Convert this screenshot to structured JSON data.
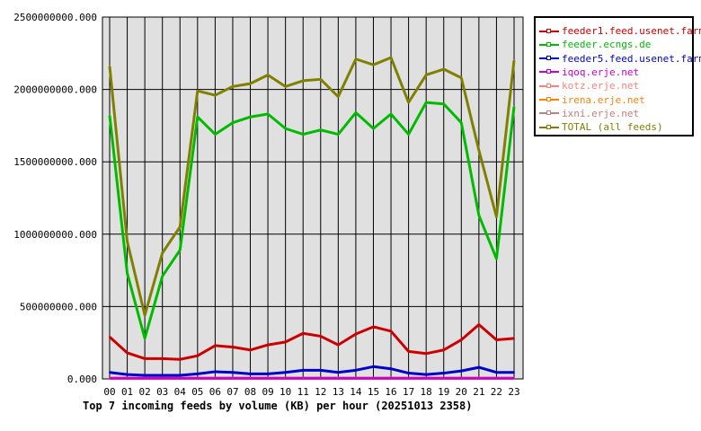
{
  "chart_data": {
    "type": "line",
    "title": "Top 7 incoming feeds by volume (KB) per hour (20251013 2358)",
    "xlabel": "",
    "ylabel": "",
    "categories": [
      "00",
      "01",
      "02",
      "03",
      "04",
      "05",
      "06",
      "07",
      "08",
      "09",
      "10",
      "11",
      "12",
      "13",
      "14",
      "15",
      "16",
      "17",
      "18",
      "19",
      "20",
      "21",
      "22",
      "23"
    ],
    "ylim": [
      0,
      2500000000
    ],
    "yticks": [
      "0.000",
      "500000000.000",
      "1000000000.000",
      "1500000000.000",
      "2000000000.000",
      "2500000000.000"
    ],
    "grid": true,
    "legend": "right",
    "series": [
      {
        "name": "feeder1.feed.usenet.farm",
        "color": "#cc0000",
        "values": [
          290000000.0,
          180000000.0,
          140000000.0,
          140000000.0,
          135000000.0,
          160000000.0,
          230000000.0,
          220000000.0,
          200000000.0,
          235000000.0,
          255000000.0,
          315000000.0,
          295000000.0,
          235000000.0,
          310000000.0,
          360000000.0,
          330000000.0,
          190000000.0,
          175000000.0,
          200000000.0,
          270000000.0,
          375000000.0,
          270000000.0,
          280000000.0
        ]
      },
      {
        "name": "feeder.ecngs.de",
        "color": "#00bb00",
        "values": [
          1820000000.0,
          730000000.0,
          280000000.0,
          710000000.0,
          890000000.0,
          1810000000.0,
          1690000000.0,
          1770000000.0,
          1810000000.0,
          1830000000.0,
          1730000000.0,
          1690000000.0,
          1720000000.0,
          1690000000.0,
          1840000000.0,
          1730000000.0,
          1830000000.0,
          1690000000.0,
          1910000000.0,
          1900000000.0,
          1770000000.0,
          1130000000.0,
          830000000.0,
          1880000000.0
        ]
      },
      {
        "name": "feeder5.feed.usenet.farm",
        "color": "#0000cc",
        "values": [
          45000000.0,
          30000000.0,
          25000000.0,
          25000000.0,
          25000000.0,
          35000000.0,
          50000000.0,
          45000000.0,
          35000000.0,
          35000000.0,
          45000000.0,
          60000000.0,
          60000000.0,
          45000000.0,
          60000000.0,
          85000000.0,
          70000000.0,
          40000000.0,
          30000000.0,
          40000000.0,
          55000000.0,
          80000000.0,
          45000000.0,
          45000000.0
        ]
      },
      {
        "name": "iqoq.erje.net",
        "color": "#cc00cc",
        "values": [
          5000000.0,
          5000000.0,
          5000000.0,
          5000000.0,
          5000000.0,
          5000000.0,
          5000000.0,
          5000000.0,
          5000000.0,
          5000000.0,
          5000000.0,
          5000000.0,
          5000000.0,
          5000000.0,
          5000000.0,
          5000000.0,
          5000000.0,
          5000000.0,
          5000000.0,
          5000000.0,
          5000000.0,
          5000000.0,
          5000000.0,
          5000000.0
        ]
      },
      {
        "name": "kotz.erje.net",
        "color": "#ff8080",
        "values": [
          5000000.0,
          5000000.0,
          5000000.0,
          5000000.0,
          5000000.0,
          5000000.0,
          5000000.0,
          5000000.0,
          5000000.0,
          5000000.0,
          5000000.0,
          5000000.0,
          5000000.0,
          5000000.0,
          5000000.0,
          5000000.0,
          5000000.0,
          5000000.0,
          5000000.0,
          5000000.0,
          5000000.0,
          5000000.0,
          5000000.0,
          5000000.0
        ]
      },
      {
        "name": "irena.erje.net",
        "color": "#ff8000",
        "values": [
          5000000.0,
          5000000.0,
          5000000.0,
          5000000.0,
          5000000.0,
          5000000.0,
          5000000.0,
          5000000.0,
          5000000.0,
          5000000.0,
          5000000.0,
          5000000.0,
          5000000.0,
          5000000.0,
          5000000.0,
          5000000.0,
          5000000.0,
          5000000.0,
          5000000.0,
          5000000.0,
          5000000.0,
          5000000.0,
          5000000.0,
          5000000.0
        ]
      },
      {
        "name": "ixni.erje.net",
        "color": "#c08080",
        "values": [
          5000000.0,
          5000000.0,
          5000000.0,
          5000000.0,
          5000000.0,
          5000000.0,
          5000000.0,
          5000000.0,
          5000000.0,
          5000000.0,
          5000000.0,
          5000000.0,
          5000000.0,
          5000000.0,
          5000000.0,
          5000000.0,
          5000000.0,
          5000000.0,
          5000000.0,
          5000000.0,
          5000000.0,
          5000000.0,
          5000000.0,
          5000000.0
        ]
      },
      {
        "name": "TOTAL (all feeds)",
        "color": "#808000",
        "values": [
          2160000000.0,
          950000000.0,
          440000000.0,
          870000000.0,
          1050000000.0,
          1990000000.0,
          1960000000.0,
          2020000000.0,
          2040000000.0,
          2100000000.0,
          2020000000.0,
          2060000000.0,
          2070000000.0,
          1950000000.0,
          2210000000.0,
          2170000000.0,
          2220000000.0,
          1910000000.0,
          2100000000.0,
          2140000000.0,
          2080000000.0,
          1580000000.0,
          1120000000.0,
          2200000000.0
        ]
      }
    ]
  }
}
